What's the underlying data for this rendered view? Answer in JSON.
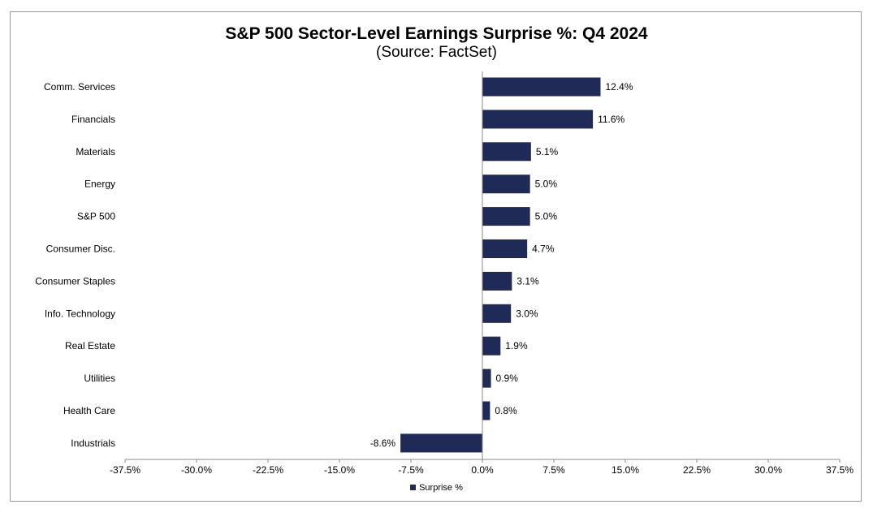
{
  "chart_data": {
    "type": "bar",
    "orientation": "horizontal",
    "title": "S&P 500 Sector-Level Earnings Surprise %: Q4 2024",
    "subtitle": "(Source: FactSet)",
    "categories": [
      "Comm. Services",
      "Financials",
      "Materials",
      "Energy",
      "S&P 500",
      "Consumer Disc.",
      "Consumer Staples",
      "Info. Technology",
      "Real Estate",
      "Utilities",
      "Health Care",
      "Industrials"
    ],
    "series": [
      {
        "name": "Surprise %",
        "color": "#1f2a56",
        "values": [
          12.4,
          11.6,
          5.1,
          5.0,
          5.0,
          4.7,
          3.1,
          3.0,
          1.9,
          0.9,
          0.8,
          -8.6
        ],
        "labels": [
          "12.4%",
          "11.6%",
          "5.1%",
          "5.0%",
          "5.0%",
          "4.7%",
          "3.1%",
          "3.0%",
          "1.9%",
          "0.9%",
          "0.8%",
          "-8.6%"
        ]
      }
    ],
    "xlim": [
      -37.5,
      37.5
    ],
    "xticks": [
      -37.5,
      -30.0,
      -22.5,
      -15.0,
      -7.5,
      0.0,
      7.5,
      15.0,
      22.5,
      30.0,
      37.5
    ],
    "xtick_labels": [
      "-37.5%",
      "-30.0%",
      "-22.5%",
      "-15.0%",
      "-7.5%",
      "0.0%",
      "7.5%",
      "15.0%",
      "22.5%",
      "30.0%",
      "37.5%"
    ],
    "grid": false,
    "legend_position": "bottom"
  }
}
